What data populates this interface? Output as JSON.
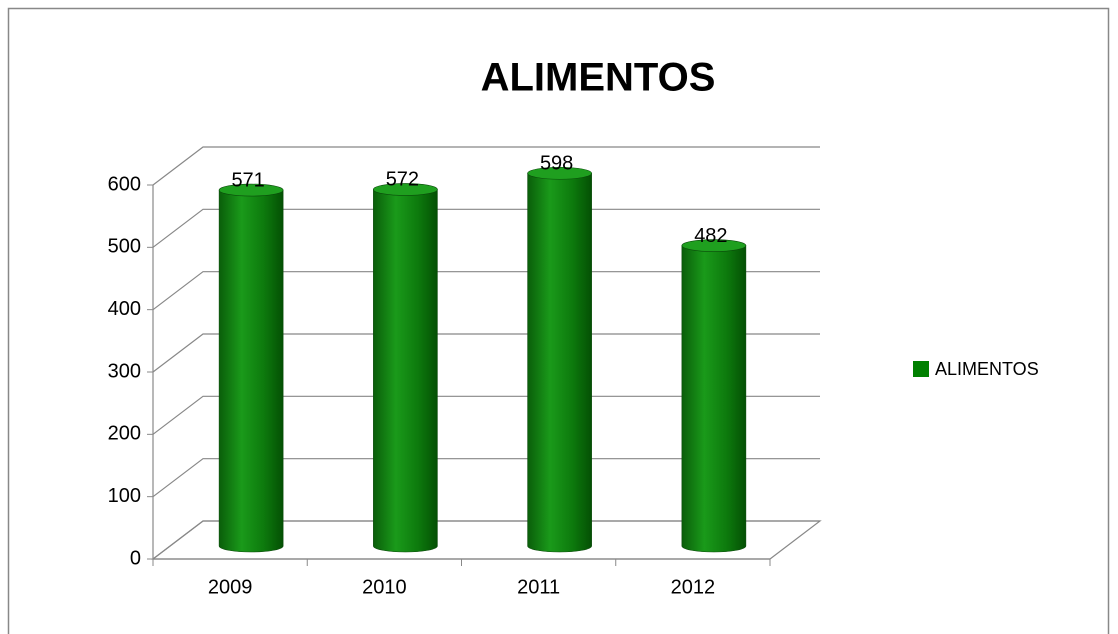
{
  "chart_data": {
    "type": "bar",
    "title": "ALIMENTOS",
    "categories": [
      "2009",
      "2010",
      "2011",
      "2012"
    ],
    "series": [
      {
        "name": "ALIMENTOS",
        "color": "#008000",
        "values": [
          571,
          572,
          598,
          482
        ]
      }
    ],
    "ylim": [
      0,
      600
    ],
    "yticks": [
      0,
      100,
      200,
      300,
      400,
      500,
      600
    ],
    "grid": true,
    "legend": "right"
  }
}
